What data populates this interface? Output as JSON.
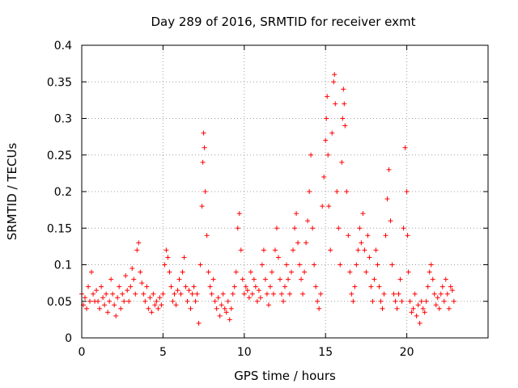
{
  "chart_data": {
    "type": "scatter",
    "title": "Day 289 of 2016, SRMTID for receiver exmt",
    "xlabel": "GPS time / hours",
    "ylabel": "SRMTID / TECUs",
    "xlim": [
      0,
      25
    ],
    "ylim": [
      0,
      0.4
    ],
    "x_ticks": [
      0,
      5,
      10,
      15,
      20
    ],
    "x_tick_labels": [
      "0",
      "5",
      "10",
      "15",
      "20"
    ],
    "y_ticks": [
      0,
      0.05,
      0.1,
      0.15,
      0.2,
      0.25,
      0.3,
      0.35,
      0.4
    ],
    "y_tick_labels": [
      "0",
      "0.05",
      "0.1",
      "0.15",
      "0.2",
      "0.25",
      "0.3",
      "0.35",
      "0.4"
    ],
    "grid": true,
    "marker": "+",
    "series_color": "#ff0000",
    "series": [
      {
        "name": "SRMTID",
        "points": [
          [
            0.0,
            0.06
          ],
          [
            0.1,
            0.045
          ],
          [
            0.2,
            0.055
          ],
          [
            0.3,
            0.04
          ],
          [
            0.4,
            0.07
          ],
          [
            0.5,
            0.05
          ],
          [
            0.6,
            0.09
          ],
          [
            0.7,
            0.06
          ],
          [
            0.8,
            0.05
          ],
          [
            0.9,
            0.065
          ],
          [
            1.0,
            0.05
          ],
          [
            1.1,
            0.04
          ],
          [
            1.2,
            0.07
          ],
          [
            1.3,
            0.055
          ],
          [
            1.4,
            0.045
          ],
          [
            1.5,
            0.06
          ],
          [
            1.6,
            0.035
          ],
          [
            1.7,
            0.05
          ],
          [
            1.8,
            0.08
          ],
          [
            1.9,
            0.06
          ],
          [
            2.0,
            0.045
          ],
          [
            2.1,
            0.03
          ],
          [
            2.2,
            0.055
          ],
          [
            2.3,
            0.07
          ],
          [
            2.4,
            0.04
          ],
          [
            2.5,
            0.06
          ],
          [
            2.6,
            0.05
          ],
          [
            2.7,
            0.085
          ],
          [
            2.8,
            0.065
          ],
          [
            2.9,
            0.05
          ],
          [
            3.0,
            0.07
          ],
          [
            3.1,
            0.095
          ],
          [
            3.2,
            0.08
          ],
          [
            3.3,
            0.06
          ],
          [
            3.4,
            0.12
          ],
          [
            3.5,
            0.13
          ],
          [
            3.6,
            0.09
          ],
          [
            3.7,
            0.075
          ],
          [
            3.8,
            0.06
          ],
          [
            3.9,
            0.05
          ],
          [
            4.0,
            0.07
          ],
          [
            4.1,
            0.04
          ],
          [
            4.2,
            0.055
          ],
          [
            4.3,
            0.035
          ],
          [
            4.4,
            0.06
          ],
          [
            4.5,
            0.045
          ],
          [
            4.6,
            0.05
          ],
          [
            4.7,
            0.04
          ],
          [
            4.8,
            0.055
          ],
          [
            4.9,
            0.045
          ],
          [
            5.0,
            0.06
          ],
          [
            5.1,
            0.1
          ],
          [
            5.2,
            0.12
          ],
          [
            5.3,
            0.11
          ],
          [
            5.4,
            0.09
          ],
          [
            5.5,
            0.07
          ],
          [
            5.6,
            0.05
          ],
          [
            5.7,
            0.06
          ],
          [
            5.8,
            0.045
          ],
          [
            5.9,
            0.065
          ],
          [
            6.0,
            0.08
          ],
          [
            6.1,
            0.06
          ],
          [
            6.2,
            0.09
          ],
          [
            6.3,
            0.11
          ],
          [
            6.4,
            0.07
          ],
          [
            6.5,
            0.05
          ],
          [
            6.6,
            0.065
          ],
          [
            6.7,
            0.04
          ],
          [
            6.8,
            0.06
          ],
          [
            6.9,
            0.07
          ],
          [
            7.0,
            0.05
          ],
          [
            7.1,
            0.06
          ],
          [
            7.2,
            0.02
          ],
          [
            7.3,
            0.1
          ],
          [
            7.4,
            0.18
          ],
          [
            7.45,
            0.24
          ],
          [
            7.5,
            0.28
          ],
          [
            7.55,
            0.26
          ],
          [
            7.6,
            0.2
          ],
          [
            7.7,
            0.14
          ],
          [
            7.8,
            0.09
          ],
          [
            7.9,
            0.07
          ],
          [
            8.0,
            0.06
          ],
          [
            8.1,
            0.08
          ],
          [
            8.2,
            0.05
          ],
          [
            8.3,
            0.04
          ],
          [
            8.4,
            0.055
          ],
          [
            8.5,
            0.03
          ],
          [
            8.6,
            0.045
          ],
          [
            8.7,
            0.06
          ],
          [
            8.8,
            0.04
          ],
          [
            8.9,
            0.035
          ],
          [
            9.0,
            0.05
          ],
          [
            9.1,
            0.025
          ],
          [
            9.2,
            0.04
          ],
          [
            9.3,
            0.06
          ],
          [
            9.4,
            0.07
          ],
          [
            9.5,
            0.09
          ],
          [
            9.6,
            0.15
          ],
          [
            9.7,
            0.17
          ],
          [
            9.8,
            0.12
          ],
          [
            9.9,
            0.08
          ],
          [
            10.0,
            0.06
          ],
          [
            10.1,
            0.07
          ],
          [
            10.2,
            0.065
          ],
          [
            10.3,
            0.055
          ],
          [
            10.4,
            0.09
          ],
          [
            10.5,
            0.06
          ],
          [
            10.6,
            0.08
          ],
          [
            10.7,
            0.07
          ],
          [
            10.8,
            0.05
          ],
          [
            10.9,
            0.065
          ],
          [
            11.0,
            0.055
          ],
          [
            11.1,
            0.1
          ],
          [
            11.2,
            0.12
          ],
          [
            11.3,
            0.08
          ],
          [
            11.4,
            0.06
          ],
          [
            11.5,
            0.045
          ],
          [
            11.6,
            0.07
          ],
          [
            11.7,
            0.09
          ],
          [
            11.8,
            0.06
          ],
          [
            11.9,
            0.12
          ],
          [
            12.0,
            0.15
          ],
          [
            12.1,
            0.11
          ],
          [
            12.2,
            0.08
          ],
          [
            12.3,
            0.06
          ],
          [
            12.4,
            0.05
          ],
          [
            12.5,
            0.07
          ],
          [
            12.6,
            0.1
          ],
          [
            12.7,
            0.08
          ],
          [
            12.8,
            0.06
          ],
          [
            12.9,
            0.09
          ],
          [
            13.0,
            0.12
          ],
          [
            13.1,
            0.15
          ],
          [
            13.2,
            0.17
          ],
          [
            13.3,
            0.13
          ],
          [
            13.4,
            0.1
          ],
          [
            13.5,
            0.08
          ],
          [
            13.6,
            0.06
          ],
          [
            13.7,
            0.09
          ],
          [
            13.8,
            0.13
          ],
          [
            13.9,
            0.16
          ],
          [
            14.0,
            0.2
          ],
          [
            14.1,
            0.25
          ],
          [
            14.2,
            0.15
          ],
          [
            14.3,
            0.1
          ],
          [
            14.4,
            0.07
          ],
          [
            14.5,
            0.05
          ],
          [
            14.6,
            0.04
          ],
          [
            14.7,
            0.06
          ],
          [
            14.8,
            0.18
          ],
          [
            14.9,
            0.22
          ],
          [
            15.0,
            0.27
          ],
          [
            15.05,
            0.3
          ],
          [
            15.1,
            0.33
          ],
          [
            15.15,
            0.25
          ],
          [
            15.2,
            0.18
          ],
          [
            15.3,
            0.12
          ],
          [
            15.4,
            0.28
          ],
          [
            15.5,
            0.35
          ],
          [
            15.55,
            0.36
          ],
          [
            15.6,
            0.32
          ],
          [
            15.7,
            0.2
          ],
          [
            15.8,
            0.15
          ],
          [
            15.9,
            0.1
          ],
          [
            16.0,
            0.24
          ],
          [
            16.05,
            0.3
          ],
          [
            16.1,
            0.34
          ],
          [
            16.15,
            0.32
          ],
          [
            16.2,
            0.29
          ],
          [
            16.3,
            0.2
          ],
          [
            16.4,
            0.14
          ],
          [
            16.5,
            0.09
          ],
          [
            16.6,
            0.06
          ],
          [
            16.7,
            0.05
          ],
          [
            16.8,
            0.07
          ],
          [
            16.9,
            0.1
          ],
          [
            17.0,
            0.12
          ],
          [
            17.1,
            0.15
          ],
          [
            17.2,
            0.13
          ],
          [
            17.3,
            0.17
          ],
          [
            17.4,
            0.12
          ],
          [
            17.5,
            0.09
          ],
          [
            17.6,
            0.14
          ],
          [
            17.7,
            0.11
          ],
          [
            17.8,
            0.07
          ],
          [
            17.9,
            0.05
          ],
          [
            18.0,
            0.08
          ],
          [
            18.1,
            0.12
          ],
          [
            18.2,
            0.1
          ],
          [
            18.3,
            0.07
          ],
          [
            18.4,
            0.05
          ],
          [
            18.5,
            0.04
          ],
          [
            18.6,
            0.06
          ],
          [
            18.7,
            0.14
          ],
          [
            18.8,
            0.19
          ],
          [
            18.9,
            0.23
          ],
          [
            19.0,
            0.16
          ],
          [
            19.1,
            0.1
          ],
          [
            19.2,
            0.06
          ],
          [
            19.3,
            0.05
          ],
          [
            19.4,
            0.04
          ],
          [
            19.5,
            0.06
          ],
          [
            19.6,
            0.08
          ],
          [
            19.7,
            0.05
          ],
          [
            19.8,
            0.15
          ],
          [
            19.9,
            0.26
          ],
          [
            20.0,
            0.2
          ],
          [
            20.05,
            0.14
          ],
          [
            20.1,
            0.09
          ],
          [
            20.2,
            0.05
          ],
          [
            20.3,
            0.035
          ],
          [
            20.4,
            0.04
          ],
          [
            20.5,
            0.06
          ],
          [
            20.6,
            0.03
          ],
          [
            20.7,
            0.045
          ],
          [
            20.8,
            0.02
          ],
          [
            20.9,
            0.05
          ],
          [
            21.0,
            0.04
          ],
          [
            21.1,
            0.035
          ],
          [
            21.2,
            0.05
          ],
          [
            21.3,
            0.07
          ],
          [
            21.4,
            0.09
          ],
          [
            21.5,
            0.1
          ],
          [
            21.6,
            0.08
          ],
          [
            21.7,
            0.06
          ],
          [
            21.8,
            0.045
          ],
          [
            21.9,
            0.055
          ],
          [
            22.0,
            0.04
          ],
          [
            22.1,
            0.06
          ],
          [
            22.2,
            0.07
          ],
          [
            22.3,
            0.05
          ],
          [
            22.4,
            0.08
          ],
          [
            22.5,
            0.06
          ],
          [
            22.6,
            0.04
          ],
          [
            22.7,
            0.07
          ],
          [
            22.8,
            0.065
          ],
          [
            22.9,
            0.05
          ]
        ]
      }
    ]
  }
}
